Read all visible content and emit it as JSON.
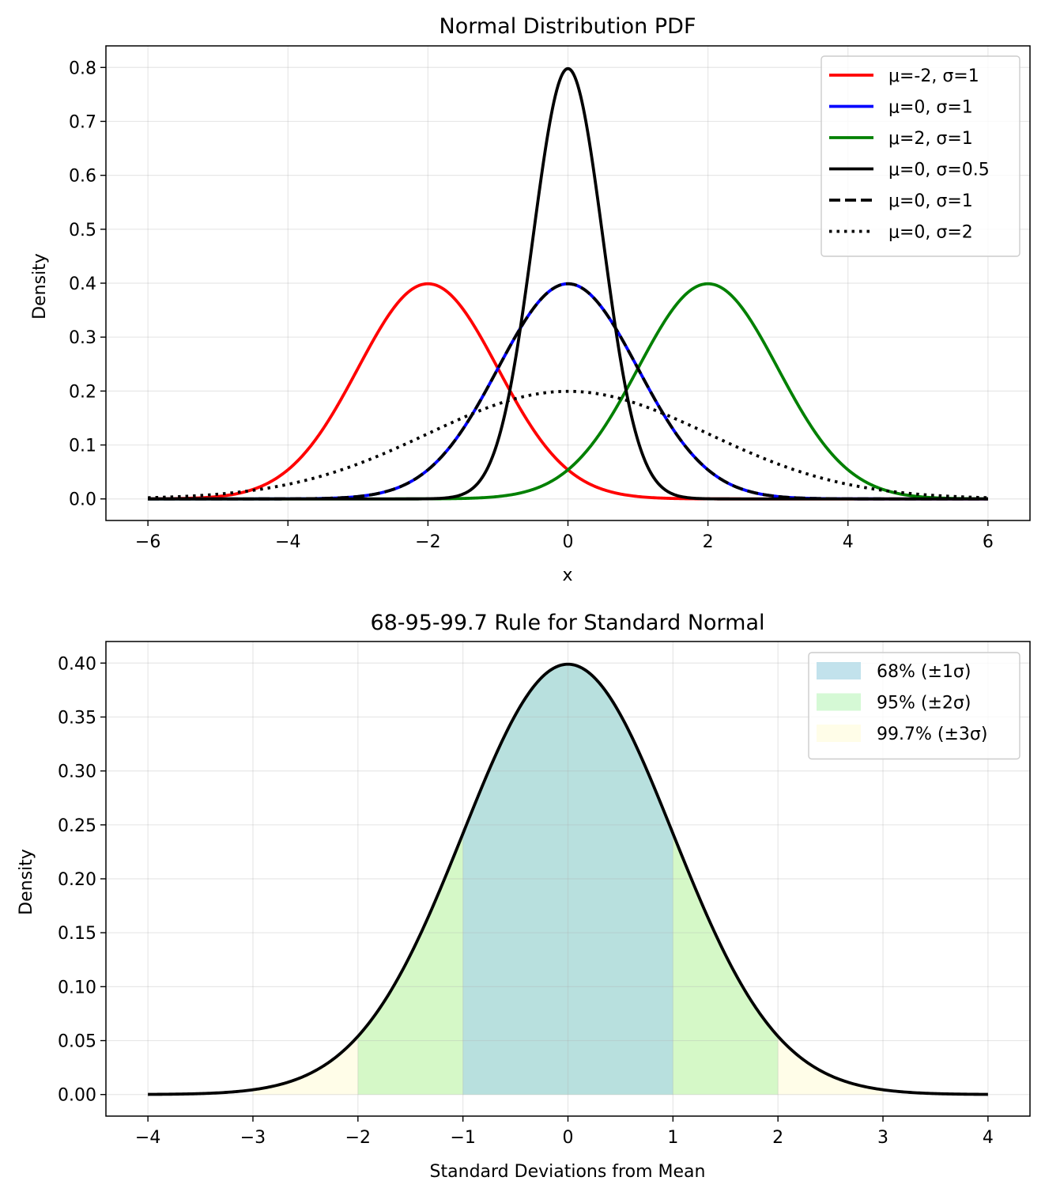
{
  "chart_data": [
    {
      "type": "line",
      "title": "Normal Distribution PDF",
      "xlabel": "x",
      "ylabel": "Density",
      "xlim": [
        -6.6,
        6.6
      ],
      "ylim": [
        -0.04,
        0.84
      ],
      "xticks": [
        -6,
        -4,
        -2,
        0,
        2,
        4,
        6
      ],
      "xtick_labels": [
        "−6",
        "−4",
        "−2",
        "0",
        "2",
        "4",
        "6"
      ],
      "yticks": [
        0.0,
        0.1,
        0.2,
        0.3,
        0.4,
        0.5,
        0.6,
        0.7,
        0.8
      ],
      "ytick_labels": [
        "0.0",
        "0.1",
        "0.2",
        "0.3",
        "0.4",
        "0.5",
        "0.6",
        "0.7",
        "0.8"
      ],
      "grid": true,
      "legend_position": "top-right",
      "x_range": [
        -6,
        6
      ],
      "series": [
        {
          "name": "μ=-2, σ=1",
          "mu": -2,
          "sigma": 1,
          "color": "#ff0000",
          "style": "solid"
        },
        {
          "name": "μ=0, σ=1",
          "mu": 0,
          "sigma": 1,
          "color": "#0000ff",
          "style": "solid"
        },
        {
          "name": "μ=2, σ=1",
          "mu": 2,
          "sigma": 1,
          "color": "#008000",
          "style": "solid"
        },
        {
          "name": "μ=0, σ=0.5",
          "mu": 0,
          "sigma": 0.5,
          "color": "#000000",
          "style": "solid"
        },
        {
          "name": "μ=0, σ=1",
          "mu": 0,
          "sigma": 1,
          "color": "#000000",
          "style": "dashed"
        },
        {
          "name": "μ=0, σ=2",
          "mu": 0,
          "sigma": 2,
          "color": "#000000",
          "style": "dotted"
        }
      ]
    },
    {
      "type": "area",
      "title": "68-95-99.7 Rule for Standard Normal",
      "xlabel": "Standard Deviations from Mean",
      "ylabel": "Density",
      "xlim": [
        -4.4,
        4.4
      ],
      "ylim": [
        -0.02,
        0.42
      ],
      "xticks": [
        -4,
        -3,
        -2,
        -1,
        0,
        1,
        2,
        3,
        4
      ],
      "xtick_labels": [
        "−4",
        "−3",
        "−2",
        "−1",
        "0",
        "1",
        "2",
        "3",
        "4"
      ],
      "yticks": [
        0.0,
        0.05,
        0.1,
        0.15,
        0.2,
        0.25,
        0.3,
        0.35,
        0.4
      ],
      "ytick_labels": [
        "0.00",
        "0.05",
        "0.10",
        "0.15",
        "0.20",
        "0.25",
        "0.30",
        "0.35",
        "0.40"
      ],
      "grid": true,
      "legend_position": "top-right",
      "x_range": [
        -4,
        4
      ],
      "curve": {
        "mu": 0,
        "sigma": 1,
        "color": "#000000"
      },
      "regions": [
        {
          "name": "68% (±1σ)",
          "from": -1,
          "to": 1,
          "color": "#add8e6",
          "opacity": 0.75
        },
        {
          "name": "95% (±2σ)",
          "from": -2,
          "to": 2,
          "color": "#90ee90",
          "opacity": 0.38
        },
        {
          "name": "99.7% (±3σ)",
          "from": -3,
          "to": 3,
          "color": "#fffde6",
          "opacity": 0.9
        }
      ]
    }
  ]
}
